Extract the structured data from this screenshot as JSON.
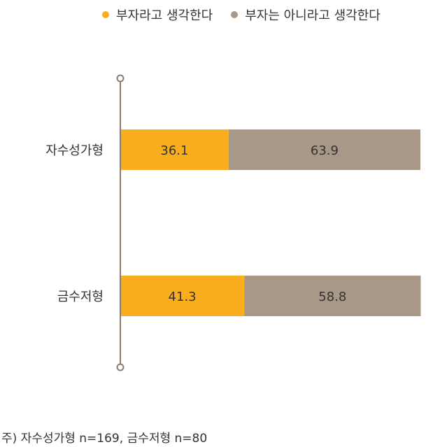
{
  "chart_data": {
    "type": "bar",
    "orientation": "horizontal",
    "stacked": true,
    "categories": [
      "자수성가형",
      "금수저형"
    ],
    "series": [
      {
        "name": "부자라고 생각한다",
        "values": [
          36.1,
          41.3
        ],
        "color": "#F9AE1D"
      },
      {
        "name": "부자는 아니라고 생각한다",
        "values": [
          63.9,
          58.8
        ],
        "color": "#A89888"
      }
    ],
    "xlim": [
      0,
      100
    ],
    "grid": false,
    "legend_position": "top-right",
    "axis_color": "#8C7B6B",
    "label_color": "#333333"
  },
  "footnote": "주) 자수성가형 n=169, 금수저형 n=80"
}
